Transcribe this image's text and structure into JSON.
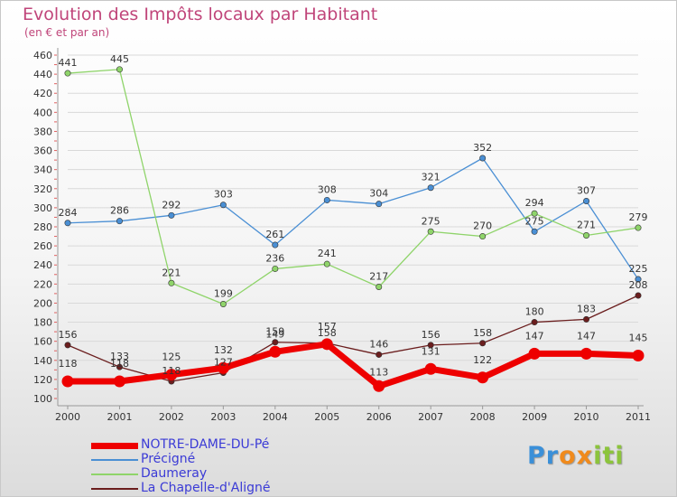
{
  "header": {
    "title": "Evolution des Impôts locaux par Habitant",
    "subtitle": "(en € et par an)"
  },
  "logo": {
    "text": "Proxiti"
  },
  "colors": {
    "title": "#c0457a",
    "legend_text": "#3b3bd6",
    "grid": "#d9d9d9",
    "axis_text": "#333333"
  },
  "chart_data": {
    "type": "line",
    "x": [
      "2000",
      "2001",
      "2002",
      "2003",
      "2004",
      "2005",
      "2006",
      "2007",
      "2008",
      "2009",
      "2010",
      "2011"
    ],
    "ylim": [
      100,
      460
    ],
    "yticks": [
      100,
      120,
      140,
      160,
      180,
      200,
      220,
      240,
      260,
      280,
      300,
      320,
      340,
      360,
      380,
      400,
      420,
      440,
      460
    ],
    "grid": "horizontal",
    "legend_position": "bottom-left",
    "series": [
      {
        "name": "Précigné",
        "color": "#4a8fd4",
        "values": [
          284,
          286,
          292,
          303,
          261,
          308,
          304,
          321,
          352,
          275,
          307,
          225
        ]
      },
      {
        "name": "Daumeray",
        "color": "#8fd46a",
        "values": [
          441,
          445,
          221,
          199,
          236,
          241,
          217,
          275,
          270,
          294,
          271,
          279
        ]
      },
      {
        "name": "La Chapelle-d'Aligné",
        "color": "#6b1e1e",
        "values": [
          156,
          133,
          118,
          127,
          159,
          158,
          146,
          156,
          158,
          180,
          183,
          208
        ]
      },
      {
        "name": "NOTRE-DAME-DU-Pé",
        "color": "#ee0000",
        "values": [
          118,
          118,
          125,
          132,
          149,
          157,
          113,
          131,
          122,
          147,
          147,
          145
        ]
      }
    ],
    "legend_order": [
      "NOTRE-DAME-DU-Pé",
      "Précigné",
      "Daumeray",
      "La Chapelle-d'Aligné"
    ]
  }
}
